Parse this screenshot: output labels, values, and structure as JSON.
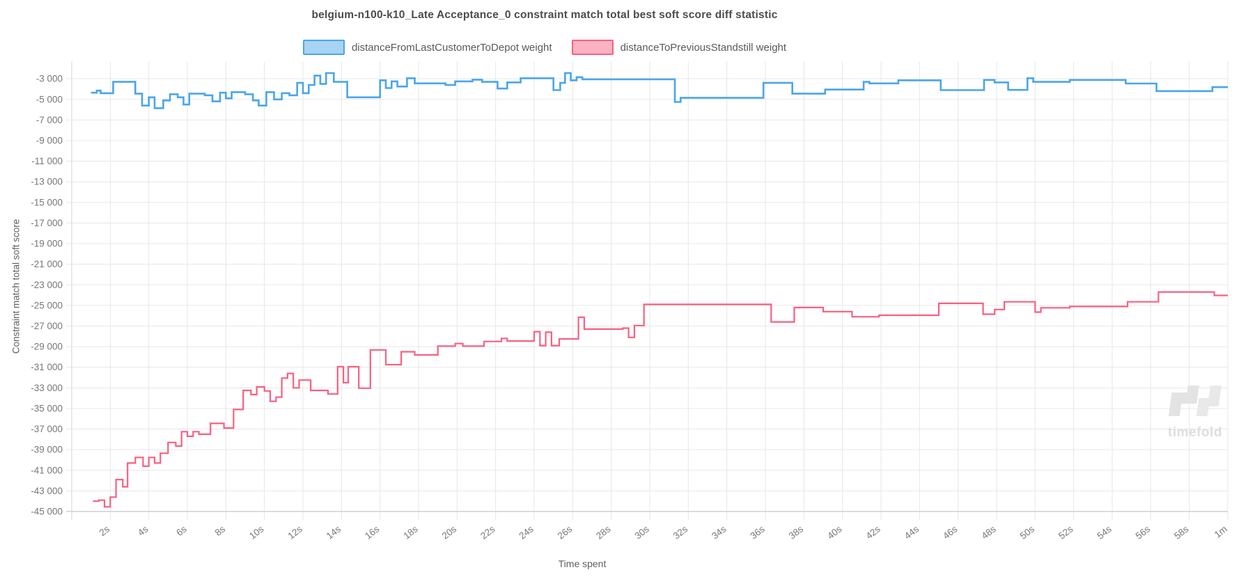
{
  "title": "belgium-n100-k10_Late Acceptance_0 constraint match total best soft score diff statistic",
  "watermark": {
    "text": "timefold"
  },
  "chart_data": {
    "type": "line",
    "step": true,
    "title": "belgium-n100-k10_Late Acceptance_0 constraint match total best soft score diff statistic",
    "xlabel": "Time spent",
    "ylabel": "Constraint match total soft score",
    "grid": true,
    "legend_position": "top",
    "xlim": [
      0,
      60
    ],
    "ylim": [
      -45000,
      -1300
    ],
    "x_ticks": [
      {
        "v": 2,
        "label": "2s"
      },
      {
        "v": 4,
        "label": "4s"
      },
      {
        "v": 6,
        "label": "6s"
      },
      {
        "v": 8,
        "label": "8s"
      },
      {
        "v": 10,
        "label": "10s"
      },
      {
        "v": 12,
        "label": "12s"
      },
      {
        "v": 14,
        "label": "14s"
      },
      {
        "v": 16,
        "label": "16s"
      },
      {
        "v": 18,
        "label": "18s"
      },
      {
        "v": 20,
        "label": "20s"
      },
      {
        "v": 22,
        "label": "22s"
      },
      {
        "v": 24,
        "label": "24s"
      },
      {
        "v": 26,
        "label": "26s"
      },
      {
        "v": 28,
        "label": "28s"
      },
      {
        "v": 30,
        "label": "30s"
      },
      {
        "v": 32,
        "label": "32s"
      },
      {
        "v": 34,
        "label": "34s"
      },
      {
        "v": 36,
        "label": "36s"
      },
      {
        "v": 38,
        "label": "38s"
      },
      {
        "v": 40,
        "label": "40s"
      },
      {
        "v": 42,
        "label": "42s"
      },
      {
        "v": 44,
        "label": "44s"
      },
      {
        "v": 46,
        "label": "46s"
      },
      {
        "v": 48,
        "label": "48s"
      },
      {
        "v": 50,
        "label": "50s"
      },
      {
        "v": 52,
        "label": "52s"
      },
      {
        "v": 54,
        "label": "54s"
      },
      {
        "v": 56,
        "label": "56s"
      },
      {
        "v": 58,
        "label": "58s"
      },
      {
        "v": 60,
        "label": "1m"
      }
    ],
    "y_ticks": [
      {
        "v": -3000,
        "label": "-3 000"
      },
      {
        "v": -5000,
        "label": "-5 000"
      },
      {
        "v": -7000,
        "label": "-7 000"
      },
      {
        "v": -9000,
        "label": "-9 000"
      },
      {
        "v": -11000,
        "label": "-11 000"
      },
      {
        "v": -13000,
        "label": "-13 000"
      },
      {
        "v": -15000,
        "label": "-15 000"
      },
      {
        "v": -17000,
        "label": "-17 000"
      },
      {
        "v": -19000,
        "label": "-19 000"
      },
      {
        "v": -21000,
        "label": "-21 000"
      },
      {
        "v": -23000,
        "label": "-23 000"
      },
      {
        "v": -25000,
        "label": "-25 000"
      },
      {
        "v": -27000,
        "label": "-27 000"
      },
      {
        "v": -29000,
        "label": "-29 000"
      },
      {
        "v": -31000,
        "label": "-31 000"
      },
      {
        "v": -33000,
        "label": "-33 000"
      },
      {
        "v": -35000,
        "label": "-35 000"
      },
      {
        "v": -37000,
        "label": "-37 000"
      },
      {
        "v": -39000,
        "label": "-39 000"
      },
      {
        "v": -41000,
        "label": "-41 000"
      },
      {
        "v": -43000,
        "label": "-43 000"
      },
      {
        "v": -45000,
        "label": "-45 000"
      }
    ],
    "series": [
      {
        "id": "distanceFromLastCustomerToDepot",
        "name": "distanceFromLastCustomerToDepot weight",
        "color": "#4aa5ea",
        "fill": "#a8d3f3",
        "points": [
          [
            1.0,
            -4350
          ],
          [
            1.3,
            -4150
          ],
          [
            1.5,
            -4400
          ],
          [
            2.15,
            -3300
          ],
          [
            3.3,
            -4450
          ],
          [
            3.65,
            -5600
          ],
          [
            4.0,
            -4800
          ],
          [
            4.3,
            -5850
          ],
          [
            4.75,
            -5100
          ],
          [
            5.1,
            -4500
          ],
          [
            5.5,
            -4800
          ],
          [
            5.8,
            -5500
          ],
          [
            6.1,
            -4450
          ],
          [
            6.9,
            -4600
          ],
          [
            7.3,
            -5200
          ],
          [
            7.7,
            -4350
          ],
          [
            8.0,
            -4900
          ],
          [
            8.3,
            -4300
          ],
          [
            9.0,
            -4500
          ],
          [
            9.4,
            -5100
          ],
          [
            9.7,
            -5600
          ],
          [
            10.1,
            -4300
          ],
          [
            10.5,
            -5000
          ],
          [
            10.9,
            -4400
          ],
          [
            11.3,
            -4600
          ],
          [
            11.7,
            -3400
          ],
          [
            12.0,
            -4400
          ],
          [
            12.3,
            -3600
          ],
          [
            12.6,
            -2700
          ],
          [
            12.9,
            -3500
          ],
          [
            13.2,
            -2450
          ],
          [
            13.6,
            -3300
          ],
          [
            14.3,
            -4800
          ],
          [
            16.0,
            -3150
          ],
          [
            16.3,
            -3900
          ],
          [
            16.6,
            -3250
          ],
          [
            16.9,
            -3750
          ],
          [
            17.4,
            -2950
          ],
          [
            17.8,
            -3450
          ],
          [
            19.4,
            -3600
          ],
          [
            19.9,
            -3250
          ],
          [
            20.8,
            -3100
          ],
          [
            21.3,
            -3300
          ],
          [
            22.1,
            -3950
          ],
          [
            22.6,
            -3350
          ],
          [
            23.3,
            -2950
          ],
          [
            25.0,
            -4100
          ],
          [
            25.35,
            -3400
          ],
          [
            25.6,
            -2450
          ],
          [
            25.9,
            -3150
          ],
          [
            26.2,
            -2850
          ],
          [
            26.5,
            -3050
          ],
          [
            31.3,
            -5250
          ],
          [
            31.6,
            -4850
          ],
          [
            35.9,
            -3400
          ],
          [
            37.4,
            -4450
          ],
          [
            39.1,
            -4050
          ],
          [
            41.1,
            -3300
          ],
          [
            41.4,
            -3450
          ],
          [
            42.9,
            -3150
          ],
          [
            45.1,
            -4100
          ],
          [
            47.35,
            -3120
          ],
          [
            47.9,
            -3350
          ],
          [
            48.6,
            -4080
          ],
          [
            49.6,
            -2950
          ],
          [
            49.9,
            -3300
          ],
          [
            51.8,
            -3120
          ],
          [
            54.7,
            -3460
          ],
          [
            56.3,
            -4200
          ],
          [
            59.2,
            -3810
          ],
          [
            60.0,
            -3810
          ]
        ]
      },
      {
        "id": "distanceToPreviousStandstill",
        "name": "distanceToPreviousStandstill weight",
        "color": "#f8607e",
        "fill": "#fbb3c3",
        "points": [
          [
            1.1,
            -44000
          ],
          [
            1.4,
            -43900
          ],
          [
            1.7,
            -44550
          ],
          [
            2.0,
            -43600
          ],
          [
            2.3,
            -41900
          ],
          [
            2.65,
            -42600
          ],
          [
            2.9,
            -40300
          ],
          [
            3.3,
            -39750
          ],
          [
            3.7,
            -40600
          ],
          [
            4.0,
            -39750
          ],
          [
            4.3,
            -40300
          ],
          [
            4.6,
            -39350
          ],
          [
            5.0,
            -38300
          ],
          [
            5.4,
            -38650
          ],
          [
            5.7,
            -37250
          ],
          [
            6.0,
            -37700
          ],
          [
            6.3,
            -37250
          ],
          [
            6.6,
            -37500
          ],
          [
            7.2,
            -36450
          ],
          [
            7.9,
            -36900
          ],
          [
            8.4,
            -35100
          ],
          [
            8.9,
            -33250
          ],
          [
            9.3,
            -33650
          ],
          [
            9.6,
            -32900
          ],
          [
            10.0,
            -33300
          ],
          [
            10.3,
            -34300
          ],
          [
            10.6,
            -33900
          ],
          [
            10.9,
            -32050
          ],
          [
            11.2,
            -31600
          ],
          [
            11.5,
            -33000
          ],
          [
            11.8,
            -32250
          ],
          [
            12.4,
            -33250
          ],
          [
            13.3,
            -33600
          ],
          [
            13.8,
            -30950
          ],
          [
            14.1,
            -32500
          ],
          [
            14.35,
            -30950
          ],
          [
            14.9,
            -33030
          ],
          [
            15.5,
            -29320
          ],
          [
            16.3,
            -30750
          ],
          [
            17.1,
            -29500
          ],
          [
            17.8,
            -29800
          ],
          [
            19.0,
            -28950
          ],
          [
            19.9,
            -28700
          ],
          [
            20.3,
            -28950
          ],
          [
            21.4,
            -28500
          ],
          [
            22.3,
            -28200
          ],
          [
            22.6,
            -28450
          ],
          [
            24.0,
            -27550
          ],
          [
            24.3,
            -28900
          ],
          [
            24.6,
            -27600
          ],
          [
            24.9,
            -28900
          ],
          [
            25.3,
            -28250
          ],
          [
            26.3,
            -26150
          ],
          [
            26.6,
            -27300
          ],
          [
            28.6,
            -27200
          ],
          [
            28.9,
            -28100
          ],
          [
            29.2,
            -26950
          ],
          [
            29.7,
            -24900
          ],
          [
            36.3,
            -26600
          ],
          [
            37.5,
            -25200
          ],
          [
            39.0,
            -25600
          ],
          [
            40.5,
            -26100
          ],
          [
            41.9,
            -25950
          ],
          [
            45.0,
            -24800
          ],
          [
            47.3,
            -25850
          ],
          [
            47.9,
            -25400
          ],
          [
            48.4,
            -24650
          ],
          [
            50.0,
            -25650
          ],
          [
            50.3,
            -25230
          ],
          [
            51.8,
            -25100
          ],
          [
            54.8,
            -24650
          ],
          [
            56.4,
            -23700
          ],
          [
            59.3,
            -24030
          ],
          [
            60.0,
            -24030
          ]
        ]
      }
    ]
  }
}
